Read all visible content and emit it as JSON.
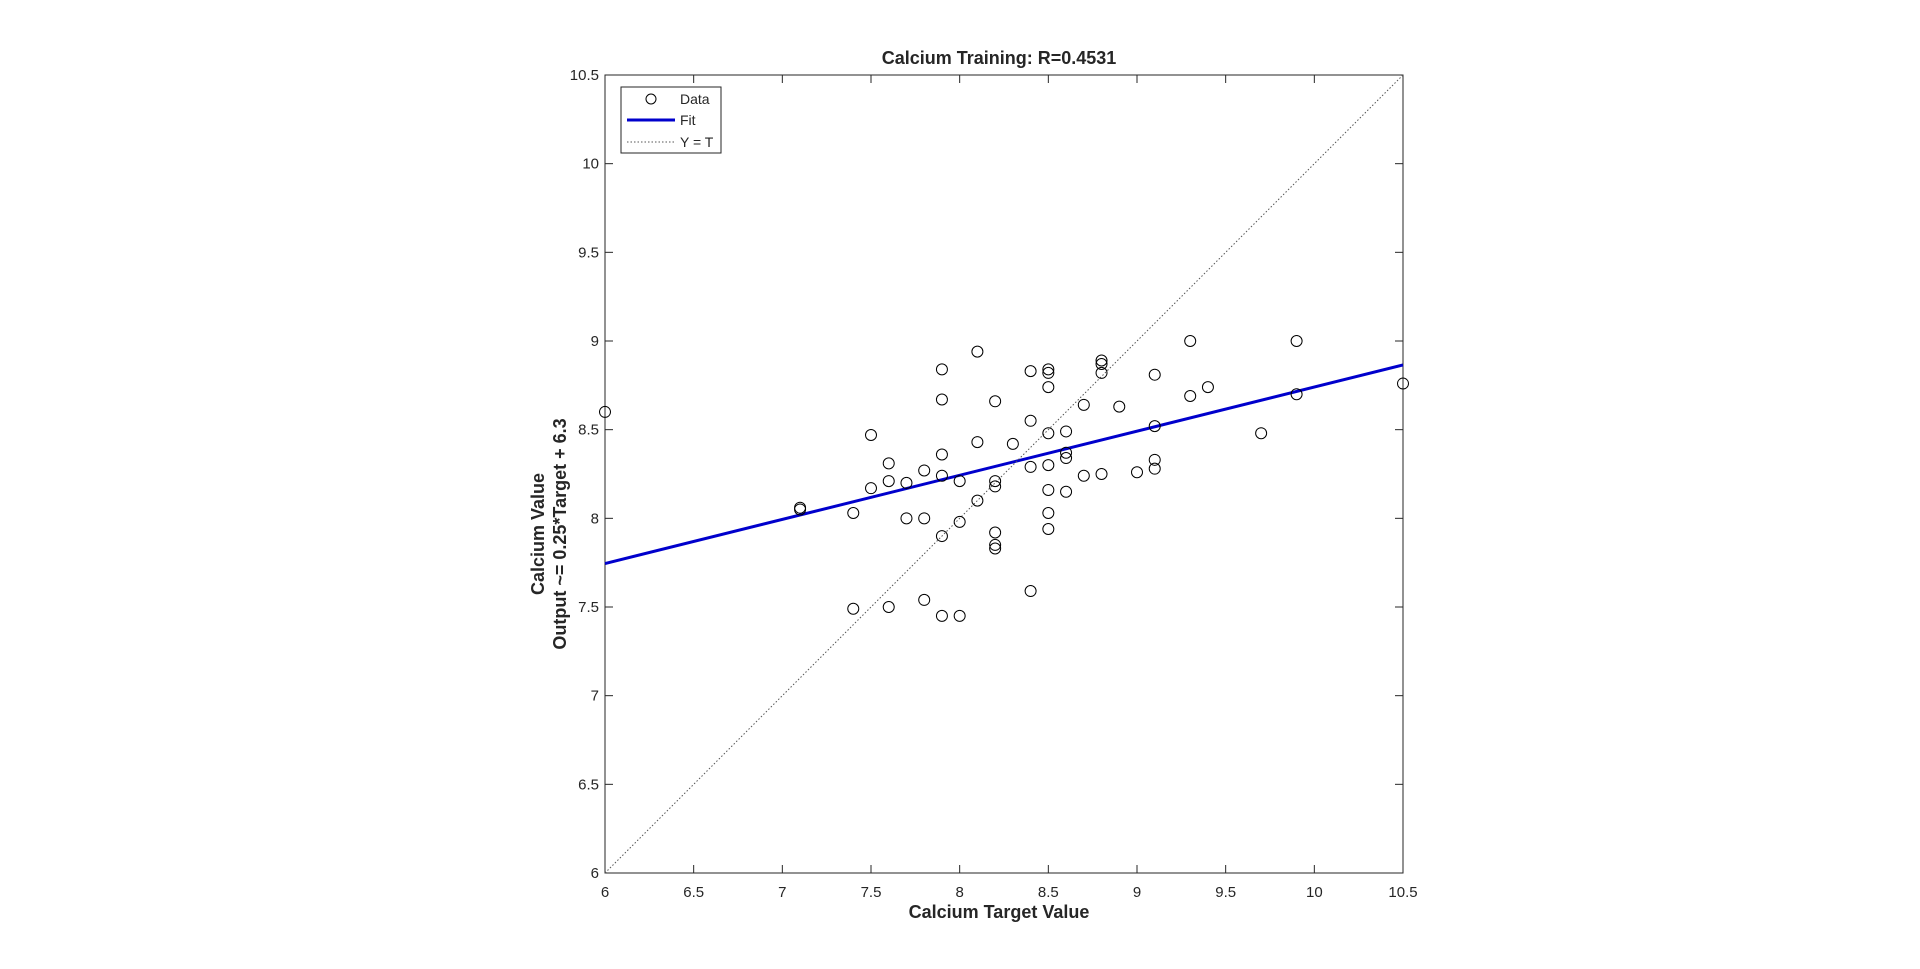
{
  "chart_data": {
    "type": "scatter",
    "title": "Calcium Training: R=0.4531",
    "xlabel": "Calcium Target Value",
    "ylabel_line1": "Calcium Value",
    "ylabel_line2": "Output ~= 0.25*Target + 6.3",
    "xlim": [
      6,
      10.5
    ],
    "ylim": [
      6,
      10.5
    ],
    "xticks": [
      "6",
      "6.5",
      "7",
      "7.5",
      "8",
      "8.5",
      "9",
      "9.5",
      "10",
      "10.5"
    ],
    "yticks": [
      "6",
      "6.5",
      "7",
      "7.5",
      "8",
      "8.5",
      "9",
      "9.5",
      "10",
      "10.5"
    ],
    "grid": false,
    "legend_position": "top-left",
    "legend": [
      {
        "label": "Data",
        "style": "circle-marker"
      },
      {
        "label": "Fit",
        "style": "solid-line"
      },
      {
        "label": "Y = T",
        "style": "dotted-line"
      }
    ],
    "series": [
      {
        "name": "Data",
        "marker": "circle",
        "color": "#000000",
        "points": [
          [
            6.0,
            8.6
          ],
          [
            7.1,
            8.06
          ],
          [
            7.1,
            8.05
          ],
          [
            7.4,
            8.03
          ],
          [
            7.4,
            7.49
          ],
          [
            7.5,
            8.47
          ],
          [
            7.5,
            8.17
          ],
          [
            7.6,
            8.31
          ],
          [
            7.6,
            8.21
          ],
          [
            7.6,
            7.5
          ],
          [
            7.7,
            8.2
          ],
          [
            7.7,
            8.0
          ],
          [
            7.8,
            8.27
          ],
          [
            7.8,
            8.0
          ],
          [
            7.8,
            7.54
          ],
          [
            7.9,
            8.84
          ],
          [
            7.9,
            8.67
          ],
          [
            7.9,
            8.36
          ],
          [
            7.9,
            8.24
          ],
          [
            7.9,
            7.9
          ],
          [
            7.9,
            7.45
          ],
          [
            8.0,
            8.21
          ],
          [
            8.0,
            7.98
          ],
          [
            8.0,
            7.45
          ],
          [
            8.1,
            8.94
          ],
          [
            8.1,
            8.43
          ],
          [
            8.1,
            8.1
          ],
          [
            8.2,
            8.66
          ],
          [
            8.2,
            8.21
          ],
          [
            8.2,
            8.18
          ],
          [
            8.2,
            7.92
          ],
          [
            8.2,
            7.85
          ],
          [
            8.2,
            7.83
          ],
          [
            8.3,
            8.42
          ],
          [
            8.4,
            8.83
          ],
          [
            8.4,
            8.55
          ],
          [
            8.4,
            8.29
          ],
          [
            8.4,
            7.59
          ],
          [
            8.5,
            8.84
          ],
          [
            8.5,
            8.82
          ],
          [
            8.5,
            8.74
          ],
          [
            8.5,
            8.48
          ],
          [
            8.5,
            8.3
          ],
          [
            8.5,
            8.16
          ],
          [
            8.5,
            8.03
          ],
          [
            8.5,
            7.94
          ],
          [
            8.6,
            8.49
          ],
          [
            8.6,
            8.37
          ],
          [
            8.6,
            8.34
          ],
          [
            8.6,
            8.15
          ],
          [
            8.7,
            8.64
          ],
          [
            8.7,
            8.24
          ],
          [
            8.8,
            8.89
          ],
          [
            8.8,
            8.87
          ],
          [
            8.8,
            8.82
          ],
          [
            8.8,
            8.25
          ],
          [
            8.9,
            8.63
          ],
          [
            9.0,
            8.26
          ],
          [
            9.1,
            8.81
          ],
          [
            9.1,
            8.52
          ],
          [
            9.1,
            8.33
          ],
          [
            9.1,
            8.28
          ],
          [
            9.3,
            9.0
          ],
          [
            9.3,
            8.69
          ],
          [
            9.4,
            8.74
          ],
          [
            9.7,
            8.48
          ],
          [
            9.9,
            9.0
          ],
          [
            9.9,
            8.7
          ],
          [
            10.5,
            8.76
          ]
        ]
      },
      {
        "name": "Fit",
        "type": "line",
        "color": "#0000CC",
        "points": [
          [
            6.0,
            7.745
          ],
          [
            10.5,
            8.865
          ]
        ]
      },
      {
        "name": "Y = T",
        "type": "line",
        "style": "dotted",
        "color": "#555555",
        "points": [
          [
            6.0,
            6.0
          ],
          [
            10.5,
            10.5
          ]
        ]
      }
    ]
  }
}
